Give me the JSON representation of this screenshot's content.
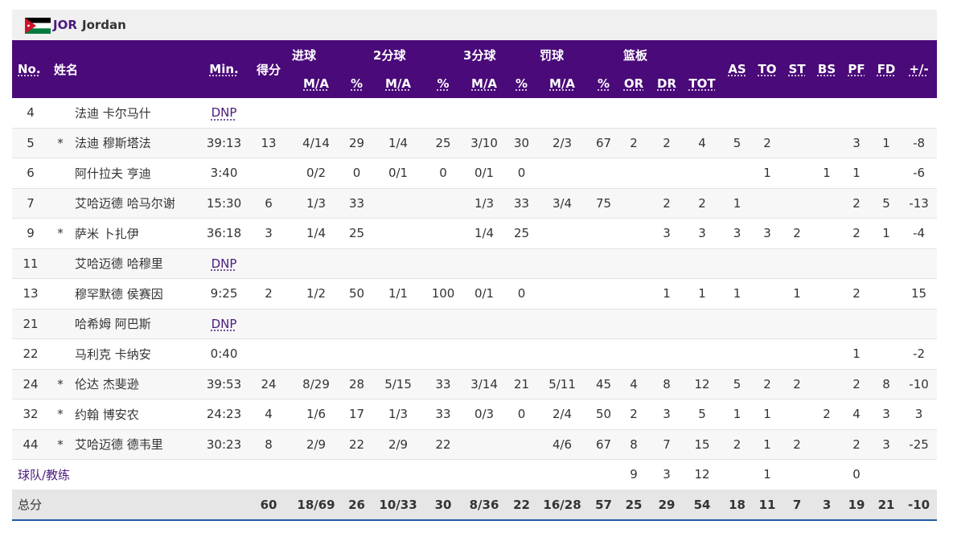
{
  "team": {
    "code": "JOR",
    "name": "Jordan",
    "flag_icon": "jordan-flag-icon"
  },
  "headers": {
    "no": "No.",
    "name": "姓名",
    "min": "Min.",
    "pts": "得分",
    "fg": "进球",
    "fg2": "2分球",
    "fg3": "3分球",
    "ft": "罚球",
    "reb": "篮板",
    "ma": "M/A",
    "pct": "%",
    "or": "OR",
    "dr": "DR",
    "tot": "TOT",
    "as": "AS",
    "to": "TO",
    "st": "ST",
    "bs": "BS",
    "pf": "PF",
    "fd": "FD",
    "pm": "+/-"
  },
  "players": [
    {
      "no": "4",
      "starter": "",
      "name": "法迪 卡尔马什",
      "min": "DNP",
      "pts": "",
      "fg_ma": "",
      "fg_pct": "",
      "fg2_ma": "",
      "fg2_pct": "",
      "fg3_ma": "",
      "fg3_pct": "",
      "ft_ma": "",
      "ft_pct": "",
      "or": "",
      "dr": "",
      "tot": "",
      "as": "",
      "to": "",
      "st": "",
      "bs": "",
      "pf": "",
      "fd": "",
      "pm": ""
    },
    {
      "no": "5",
      "starter": "*",
      "name": "法迪 穆斯塔法",
      "min": "39:13",
      "pts": "13",
      "fg_ma": "4/14",
      "fg_pct": "29",
      "fg2_ma": "1/4",
      "fg2_pct": "25",
      "fg3_ma": "3/10",
      "fg3_pct": "30",
      "ft_ma": "2/3",
      "ft_pct": "67",
      "or": "2",
      "dr": "2",
      "tot": "4",
      "as": "5",
      "to": "2",
      "st": "",
      "bs": "",
      "pf": "3",
      "fd": "1",
      "pm": "-8"
    },
    {
      "no": "6",
      "starter": "",
      "name": "阿什拉夫 亨迪",
      "min": "3:40",
      "pts": "",
      "fg_ma": "0/2",
      "fg_pct": "0",
      "fg2_ma": "0/1",
      "fg2_pct": "0",
      "fg3_ma": "0/1",
      "fg3_pct": "0",
      "ft_ma": "",
      "ft_pct": "",
      "or": "",
      "dr": "",
      "tot": "",
      "as": "",
      "to": "1",
      "st": "",
      "bs": "1",
      "pf": "1",
      "fd": "",
      "pm": "-6"
    },
    {
      "no": "7",
      "starter": "",
      "name": "艾哈迈德 哈马尔谢",
      "min": "15:30",
      "pts": "6",
      "fg_ma": "1/3",
      "fg_pct": "33",
      "fg2_ma": "",
      "fg2_pct": "",
      "fg3_ma": "1/3",
      "fg3_pct": "33",
      "ft_ma": "3/4",
      "ft_pct": "75",
      "or": "",
      "dr": "2",
      "tot": "2",
      "as": "1",
      "to": "",
      "st": "",
      "bs": "",
      "pf": "2",
      "fd": "5",
      "pm": "-13"
    },
    {
      "no": "9",
      "starter": "*",
      "name": "萨米 卜扎伊",
      "min": "36:18",
      "pts": "3",
      "fg_ma": "1/4",
      "fg_pct": "25",
      "fg2_ma": "",
      "fg2_pct": "",
      "fg3_ma": "1/4",
      "fg3_pct": "25",
      "ft_ma": "",
      "ft_pct": "",
      "or": "",
      "dr": "3",
      "tot": "3",
      "as": "3",
      "to": "3",
      "st": "2",
      "bs": "",
      "pf": "2",
      "fd": "1",
      "pm": "-4"
    },
    {
      "no": "11",
      "starter": "",
      "name": "艾哈迈德 哈穆里",
      "min": "DNP",
      "pts": "",
      "fg_ma": "",
      "fg_pct": "",
      "fg2_ma": "",
      "fg2_pct": "",
      "fg3_ma": "",
      "fg3_pct": "",
      "ft_ma": "",
      "ft_pct": "",
      "or": "",
      "dr": "",
      "tot": "",
      "as": "",
      "to": "",
      "st": "",
      "bs": "",
      "pf": "",
      "fd": "",
      "pm": ""
    },
    {
      "no": "13",
      "starter": "",
      "name": "穆罕默德 侯赛因",
      "min": "9:25",
      "pts": "2",
      "fg_ma": "1/2",
      "fg_pct": "50",
      "fg2_ma": "1/1",
      "fg2_pct": "100",
      "fg3_ma": "0/1",
      "fg3_pct": "0",
      "ft_ma": "",
      "ft_pct": "",
      "or": "",
      "dr": "1",
      "tot": "1",
      "as": "1",
      "to": "",
      "st": "1",
      "bs": "",
      "pf": "2",
      "fd": "",
      "pm": "15"
    },
    {
      "no": "21",
      "starter": "",
      "name": "哈希姆 阿巴斯",
      "min": "DNP",
      "pts": "",
      "fg_ma": "",
      "fg_pct": "",
      "fg2_ma": "",
      "fg2_pct": "",
      "fg3_ma": "",
      "fg3_pct": "",
      "ft_ma": "",
      "ft_pct": "",
      "or": "",
      "dr": "",
      "tot": "",
      "as": "",
      "to": "",
      "st": "",
      "bs": "",
      "pf": "",
      "fd": "",
      "pm": ""
    },
    {
      "no": "22",
      "starter": "",
      "name": "马利克 卡纳安",
      "min": "0:40",
      "pts": "",
      "fg_ma": "",
      "fg_pct": "",
      "fg2_ma": "",
      "fg2_pct": "",
      "fg3_ma": "",
      "fg3_pct": "",
      "ft_ma": "",
      "ft_pct": "",
      "or": "",
      "dr": "",
      "tot": "",
      "as": "",
      "to": "",
      "st": "",
      "bs": "",
      "pf": "1",
      "fd": "",
      "pm": "-2"
    },
    {
      "no": "24",
      "starter": "*",
      "name": "伦达 杰斐逊",
      "min": "39:53",
      "pts": "24",
      "fg_ma": "8/29",
      "fg_pct": "28",
      "fg2_ma": "5/15",
      "fg2_pct": "33",
      "fg3_ma": "3/14",
      "fg3_pct": "21",
      "ft_ma": "5/11",
      "ft_pct": "45",
      "or": "4",
      "dr": "8",
      "tot": "12",
      "as": "5",
      "to": "2",
      "st": "2",
      "bs": "",
      "pf": "2",
      "fd": "8",
      "pm": "-10"
    },
    {
      "no": "32",
      "starter": "*",
      "name": "约翰 博安农",
      "min": "24:23",
      "pts": "4",
      "fg_ma": "1/6",
      "fg_pct": "17",
      "fg2_ma": "1/3",
      "fg2_pct": "33",
      "fg3_ma": "0/3",
      "fg3_pct": "0",
      "ft_ma": "2/4",
      "ft_pct": "50",
      "or": "2",
      "dr": "3",
      "tot": "5",
      "as": "1",
      "to": "1",
      "st": "",
      "bs": "2",
      "pf": "4",
      "fd": "3",
      "pm": "3"
    },
    {
      "no": "44",
      "starter": "*",
      "name": "艾哈迈德 德韦里",
      "min": "30:23",
      "pts": "8",
      "fg_ma": "2/9",
      "fg_pct": "22",
      "fg2_ma": "2/9",
      "fg2_pct": "22",
      "fg3_ma": "",
      "fg3_pct": "",
      "ft_ma": "4/6",
      "ft_pct": "67",
      "or": "8",
      "dr": "7",
      "tot": "15",
      "as": "2",
      "to": "1",
      "st": "2",
      "bs": "",
      "pf": "2",
      "fd": "3",
      "pm": "-25"
    }
  ],
  "coach": {
    "label": "球队/教练",
    "or": "9",
    "dr": "3",
    "tot": "12",
    "to": "1",
    "pf": "0"
  },
  "totals": {
    "label": "总分",
    "pts": "60",
    "fg_ma": "18/69",
    "fg_pct": "26",
    "fg2_ma": "10/33",
    "fg2_pct": "30",
    "fg3_ma": "8/36",
    "fg3_pct": "22",
    "ft_ma": "16/28",
    "ft_pct": "57",
    "or": "25",
    "dr": "29",
    "tot": "54",
    "as": "18",
    "to": "11",
    "st": "7",
    "bs": "3",
    "pf": "19",
    "fd": "21",
    "pm": "-10"
  },
  "colors": {
    "header_bg": "#4a0a7a",
    "link": "#4a1a7c",
    "total_border": "#1e5aa0"
  }
}
